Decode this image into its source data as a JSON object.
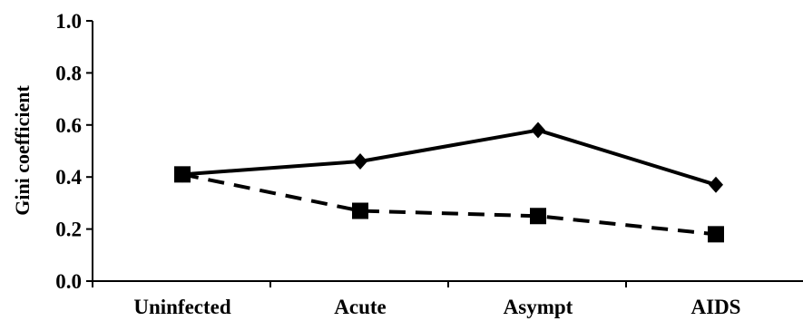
{
  "chart_data": {
    "type": "line",
    "categories": [
      "Uninfected",
      "Acute",
      "Asympt",
      "AIDS"
    ],
    "ylabel": "Gini coefficient",
    "xlabel": "",
    "ylim": [
      0.0,
      1.0
    ],
    "yticks": [
      "0.0",
      "0.2",
      "0.4",
      "0.6",
      "0.8",
      "1.0"
    ],
    "grid": false,
    "series": [
      {
        "values": [
          0.41,
          0.46,
          0.58,
          0.37
        ],
        "style": "solid",
        "marker": "diamond",
        "color": "#000000"
      },
      {
        "values": [
          0.41,
          0.27,
          0.25,
          0.18
        ],
        "style": "dashed",
        "marker": "square",
        "color": "#000000"
      }
    ]
  }
}
